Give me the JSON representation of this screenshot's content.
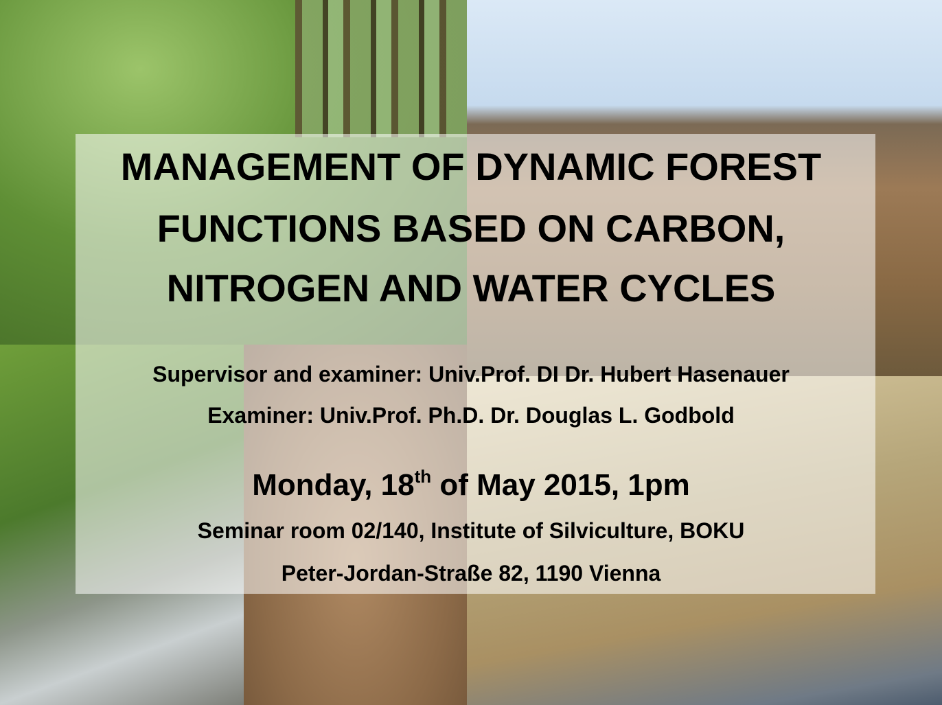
{
  "poster": {
    "title_lines": [
      "MANAGEMENT OF DYNAMIC FOREST",
      "FUNCTIONS BASED ON CARBON,",
      "NITROGEN AND WATER CYCLES"
    ],
    "supervisor": "Supervisor and examiner: Univ.Prof. DI Dr. Hubert Hasenauer",
    "examiner": "Examiner: Univ.Prof. Ph.D. Dr. Douglas L. Godbold",
    "date": {
      "before": "Monday, 18",
      "sup": "th",
      "after": " of May 2015, 1pm"
    },
    "room": "Seminar room 02/140, Institute of Silviculture, BOKU",
    "address": "Peter-Jordan-Straße 82, 1190 Vienna"
  }
}
